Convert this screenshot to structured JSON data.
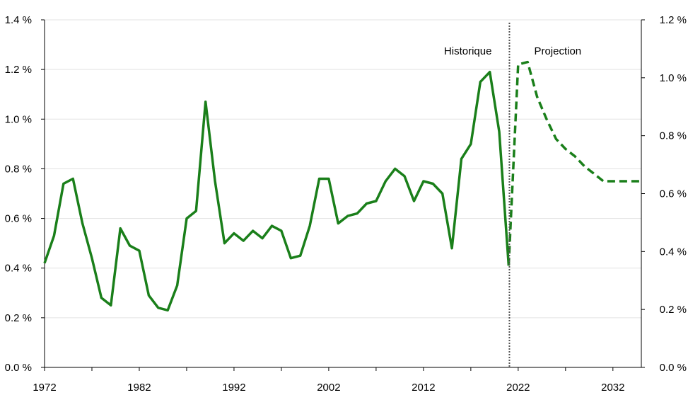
{
  "chart_data": {
    "type": "line",
    "title": "",
    "xlabel": "",
    "ylabel": "",
    "xlim": [
      1972,
      2035
    ],
    "ylim_left": [
      0,
      1.4
    ],
    "ylim_right": [
      0,
      1.2
    ],
    "x_ticks": [
      "1972",
      "1982",
      "1992",
      "2002",
      "2012",
      "2022",
      "2032"
    ],
    "y_left_ticks": [
      "0.0 %",
      "0.2 %",
      "0.4 %",
      "0.6 %",
      "0.8 %",
      "1.0 %",
      "1.2 %",
      "1.4 %"
    ],
    "y_right_ticks": [
      "0.0 %",
      "0.2 %",
      "0.4 %",
      "0.6 %",
      "0.8 %",
      "1.0 %",
      "1.2 %"
    ],
    "grid": "horizontal",
    "divider_year": 2021,
    "annotations": {
      "historical": "Historique",
      "projection": "Projection"
    },
    "series": [
      {
        "style": "solid",
        "color": "#1a7f1a",
        "axis": "left",
        "x": [
          1972,
          1973,
          1974,
          1975,
          1976,
          1977,
          1978,
          1979,
          1980,
          1981,
          1982,
          1983,
          1984,
          1985,
          1986,
          1987,
          1988,
          1989,
          1990,
          1991,
          1992,
          1993,
          1994,
          1995,
          1996,
          1997,
          1998,
          1999,
          2000,
          2001,
          2002,
          2003,
          2004,
          2005,
          2006,
          2007,
          2008,
          2009,
          2010,
          2011,
          2012,
          2013,
          2014,
          2015,
          2016,
          2017,
          2018,
          2019,
          2020,
          2021
        ],
        "values": [
          0.42,
          0.53,
          0.74,
          0.76,
          0.58,
          0.44,
          0.28,
          0.25,
          0.56,
          0.49,
          0.47,
          0.29,
          0.24,
          0.23,
          0.33,
          0.6,
          0.63,
          1.07,
          0.75,
          0.5,
          0.54,
          0.51,
          0.55,
          0.52,
          0.57,
          0.55,
          0.44,
          0.45,
          0.57,
          0.76,
          0.76,
          0.58,
          0.61,
          0.62,
          0.66,
          0.67,
          0.75,
          0.8,
          0.77,
          0.67,
          0.75,
          0.74,
          0.7,
          0.48,
          0.84,
          0.9,
          1.15,
          1.19,
          0.95,
          0.41
        ]
      },
      {
        "style": "dashed",
        "color": "#1a7f1a",
        "axis": "left",
        "x": [
          2021,
          2022,
          2023,
          2024,
          2025,
          2026,
          2027,
          2028,
          2029,
          2030,
          2031,
          2032,
          2033,
          2034,
          2035
        ],
        "values": [
          0.41,
          1.22,
          1.23,
          1.09,
          1.0,
          0.92,
          0.88,
          0.85,
          0.81,
          0.78,
          0.75,
          0.75,
          0.75,
          0.75,
          0.75
        ]
      }
    ]
  }
}
